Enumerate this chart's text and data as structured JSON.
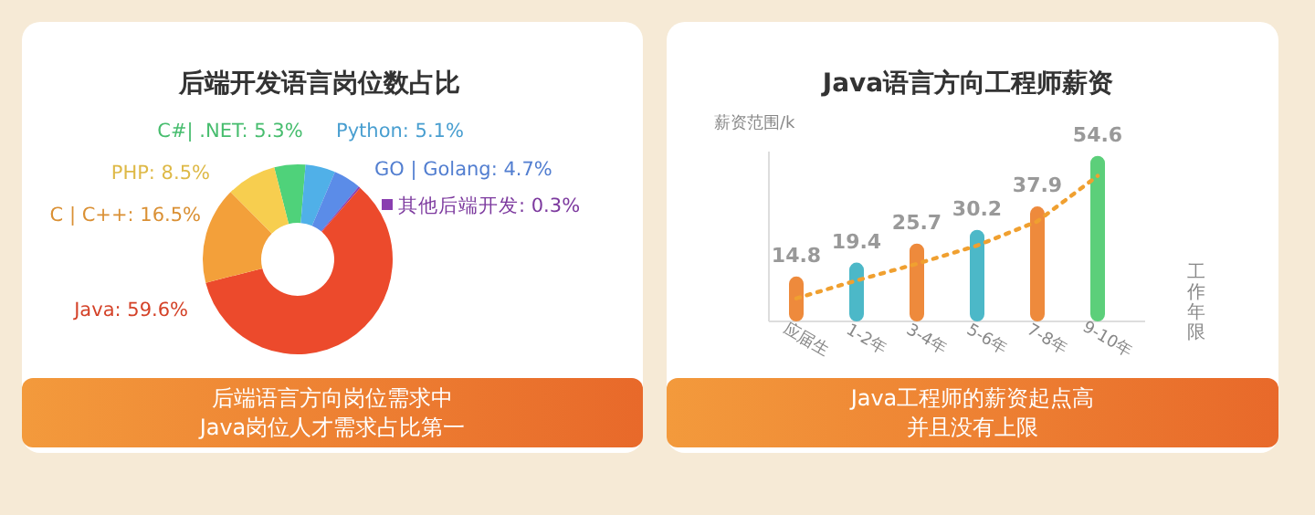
{
  "chart_data": [
    {
      "type": "donut",
      "title": "后端开发语言岗位数占比",
      "categories": [
        "C#| .NET",
        "Python",
        "GO | Golang",
        "其他后端开发",
        "Java",
        "C | C++",
        "PHP"
      ],
      "values": [
        5.3,
        5.1,
        4.7,
        0.3,
        59.6,
        16.5,
        8.5
      ],
      "value_labels": [
        "5.3%",
        "5.1%",
        "4.7%",
        "0.3%",
        "59.6%",
        "16.5%",
        "8.5%"
      ],
      "colors": [
        "#4fd27a",
        "#50b0e8",
        "#5b8ce8",
        "#8a3fb0",
        "#ec4a2c",
        "#f3a03a",
        "#f7ce4f"
      ],
      "annotations": [
        "后端语言方向岗位需求中",
        "Java岗位人才需求占比第一"
      ]
    },
    {
      "type": "bar",
      "title": "Java语言方向工程师薪资",
      "ylabel": "薪资范围/k",
      "xlabel": "工作年限",
      "categories": [
        "应届生",
        "1-2年",
        "3-4年",
        "5-6年",
        "7-8年",
        "9-10年"
      ],
      "ylim": [
        0,
        56
      ],
      "tick_labels": "x",
      "series": [
        {
          "type": "bar",
          "colors": [
            "#ee8a3c",
            "#4cb8c8",
            "#ee8a3c",
            "#4cb8c8",
            "#ee8a3c",
            "#5ccf7a"
          ],
          "values": [
            14.8,
            19.4,
            25.7,
            30.2,
            37.9,
            54.6
          ],
          "value_labels": [
            "14.8",
            "19.4",
            "25.7",
            "30.2",
            "37.9",
            "54.6"
          ]
        },
        {
          "type": "line",
          "color": "#f0a030",
          "line_style": "dotted",
          "marker": "none",
          "values": [
            7.6,
            13.5,
            19,
            25,
            33,
            48
          ]
        }
      ],
      "annotations": [
        "Java工程师的薪资起点高",
        "并且没有上限"
      ]
    }
  ]
}
